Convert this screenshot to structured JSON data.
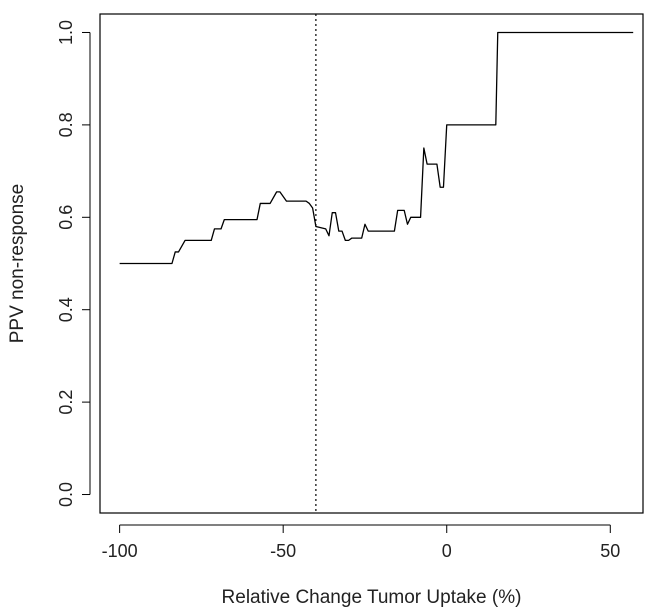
{
  "chart_data": {
    "type": "line",
    "title": "",
    "xlabel": "Relative Change Tumor Uptake (%)",
    "ylabel": "PPV non-response",
    "xlim": [
      -100,
      57
    ],
    "ylim": [
      0,
      1
    ],
    "xticks": [
      -100,
      -50,
      0,
      50
    ],
    "xtick_labels": [
      "-100",
      "-50",
      "0",
      "50"
    ],
    "yticks": [
      0,
      0.2,
      0.4,
      0.6,
      0.8,
      1.0
    ],
    "ytick_labels": [
      "0.0",
      "0.2",
      "0.4",
      "0.6",
      "0.8",
      "1.0"
    ],
    "grid": false,
    "reference_line": {
      "x": -40,
      "style": "dotted"
    },
    "series": [
      {
        "x": [
          -100,
          -84,
          -83,
          -82,
          -80,
          -79,
          -72,
          -71,
          -69,
          -68,
          -67,
          -62,
          -58,
          -57,
          -55,
          -54,
          -52,
          -51,
          -49,
          -48,
          -43,
          -42,
          -41,
          -40,
          -37,
          -36,
          -35,
          -34,
          -33,
          -32,
          -31,
          -30,
          -29,
          -26,
          -25,
          -24,
          -23,
          -16,
          -15,
          -13,
          -12,
          -11,
          -10,
          -8,
          -7,
          -6,
          -5,
          -4,
          -3,
          -2,
          -1,
          0,
          15,
          15.6,
          57
        ],
        "y": [
          0.5,
          0.5,
          0.525,
          0.525,
          0.55,
          0.55,
          0.55,
          0.575,
          0.575,
          0.595,
          0.595,
          0.595,
          0.595,
          0.63,
          0.63,
          0.63,
          0.655,
          0.655,
          0.635,
          0.635,
          0.635,
          0.63,
          0.62,
          0.58,
          0.575,
          0.56,
          0.61,
          0.61,
          0.57,
          0.57,
          0.55,
          0.55,
          0.555,
          0.555,
          0.585,
          0.57,
          0.57,
          0.57,
          0.615,
          0.615,
          0.585,
          0.6,
          0.6,
          0.6,
          0.75,
          0.715,
          0.715,
          0.715,
          0.715,
          0.665,
          0.665,
          0.8,
          0.8,
          1.0,
          1.0
        ]
      }
    ]
  }
}
